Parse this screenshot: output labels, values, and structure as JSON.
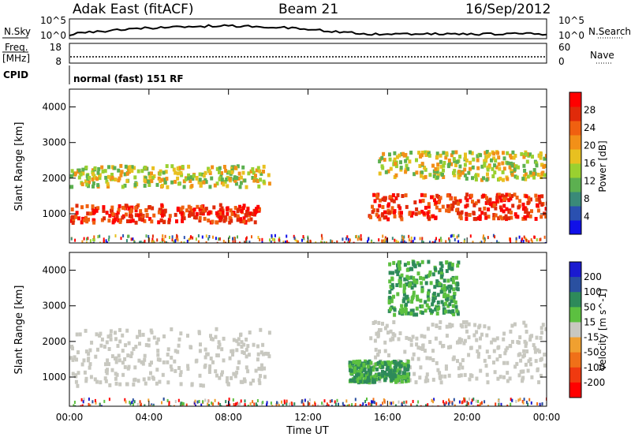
{
  "header": {
    "station": "Adak East (fitACF)",
    "beam": "Beam 21",
    "date": "16/Sep/2012"
  },
  "status_panels": {
    "nsky_label": "N.Sky",
    "nsearch_label": "N.Search",
    "noise_left_ticks": [
      "10^5",
      "10^0"
    ],
    "noise_right_ticks": [
      "10^5",
      "10^0"
    ],
    "freq_label_top": "Freq.",
    "freq_label_bottom": "[MHz]",
    "freq_ticks": [
      "18",
      "8"
    ],
    "nave_label": "Nave",
    "nave_ticks": [
      "60",
      "0"
    ],
    "cpid_label": "CPID",
    "cpid_text": "normal (fast) 151 RF"
  },
  "chart_data": [
    {
      "type": "heatmap",
      "title": "",
      "quantity": "Power",
      "xlabel": "",
      "ylabel": "Slant Range [km]",
      "ylim": [
        180,
        4500
      ],
      "y_ticks": [
        "1000",
        "2000",
        "3000",
        "4000"
      ],
      "x_ticks": [
        "00:00",
        "04:00",
        "08:00",
        "12:00",
        "16:00",
        "20:00",
        "00:00"
      ],
      "colorbar": {
        "label": "Power [dB]",
        "ticks": [
          "4",
          "8",
          "12",
          "16",
          "20",
          "24",
          "28"
        ],
        "colors": [
          "#1010e8",
          "#2a50b0",
          "#3a8a78",
          "#5cb050",
          "#9ad030",
          "#e8c020",
          "#f29018",
          "#f06010",
          "#e02a0a",
          "#ff0000"
        ]
      },
      "features": [
        {
          "t_start": 0.0,
          "t_end": 9.5,
          "range_km": "800-1300",
          "power_db": "24-30"
        },
        {
          "t_start": 0.0,
          "t_end": 10.0,
          "range_km": "1800-2400",
          "power_db": "12-24"
        },
        {
          "t_start": 15.0,
          "t_end": 24.0,
          "range_km": "900-1600",
          "power_db": "24-30"
        },
        {
          "t_start": 15.5,
          "t_end": 24.0,
          "range_km": "2000-2800",
          "power_db": "14-22"
        }
      ]
    },
    {
      "type": "heatmap",
      "title": "",
      "quantity": "Velocity",
      "xlabel": "Time UT",
      "ylabel": "Slant Range [km]",
      "ylim": [
        180,
        4500
      ],
      "y_ticks": [
        "1000",
        "2000",
        "3000",
        "4000"
      ],
      "x_ticks": [
        "00:00",
        "04:00",
        "08:00",
        "12:00",
        "16:00",
        "20:00",
        "00:00"
      ],
      "colorbar": {
        "label": "Velocity [m s^-1]",
        "ticks": [
          "200",
          "100",
          "50",
          "15",
          "-15",
          "-50",
          "-100",
          "-200"
        ],
        "colors": [
          "#1a1ad0",
          "#2a50a0",
          "#2e8a5a",
          "#5cc040",
          "#c8c8c0",
          "#f0a030",
          "#f07018",
          "#f03a10",
          "#ff0000"
        ]
      },
      "features": [
        {
          "t_start": 0.0,
          "t_end": 10.0,
          "range_km": "800-2400",
          "velocity": "ground scatter (-15 to 15)"
        },
        {
          "t_start": 15.0,
          "t_end": 24.0,
          "range_km": "900-2600",
          "velocity": "ground scatter (-15 to 15)"
        },
        {
          "t_start": 16.0,
          "t_end": 19.5,
          "range_km": "2800-4300",
          "velocity": "50-100"
        },
        {
          "t_start": 14.0,
          "t_end": 17.0,
          "range_km": "900-1500",
          "velocity": "50-100"
        }
      ]
    }
  ]
}
